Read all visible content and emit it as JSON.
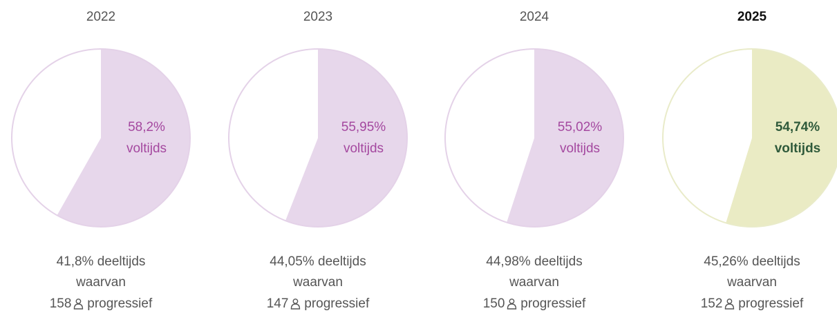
{
  "chart_data": [
    {
      "type": "pie",
      "title": "2022",
      "categories": [
        "voltijds",
        "deeltijds"
      ],
      "values": [
        58.2,
        41.8
      ],
      "value_labels": [
        "58,2%",
        "41,8%"
      ],
      "colors": [
        "#e7d7eb",
        "#ffffff"
      ],
      "outline": "#e4d2e8",
      "text_color": "#a4489f",
      "bold": false,
      "sublabel": "waarvan",
      "count": 158,
      "count_label": "progressief"
    },
    {
      "type": "pie",
      "title": "2023",
      "categories": [
        "voltijds",
        "deeltijds"
      ],
      "values": [
        55.95,
        44.05
      ],
      "value_labels": [
        "55,95%",
        "44,05%"
      ],
      "colors": [
        "#e7d7eb",
        "#ffffff"
      ],
      "outline": "#e4d2e8",
      "text_color": "#a4489f",
      "bold": false,
      "sublabel": "waarvan",
      "count": 147,
      "count_label": "progressief"
    },
    {
      "type": "pie",
      "title": "2024",
      "categories": [
        "voltijds",
        "deeltijds"
      ],
      "values": [
        55.02,
        44.98
      ],
      "value_labels": [
        "55,02%",
        "44,98%"
      ],
      "colors": [
        "#e7d7eb",
        "#ffffff"
      ],
      "outline": "#e4d2e8",
      "text_color": "#a4489f",
      "bold": false,
      "sublabel": "waarvan",
      "count": 150,
      "count_label": "progressief"
    },
    {
      "type": "pie",
      "title": "2025",
      "categories": [
        "voltijds",
        "deeltijds"
      ],
      "values": [
        54.74,
        45.26
      ],
      "value_labels": [
        "54,74%",
        "45,26%"
      ],
      "colors": [
        "#eaebc4",
        "#ffffff"
      ],
      "outline": "#e9ebc9",
      "text_color": "#2f5a3b",
      "bold": true,
      "sublabel": "waarvan",
      "count": 152,
      "count_label": "progressief"
    }
  ]
}
